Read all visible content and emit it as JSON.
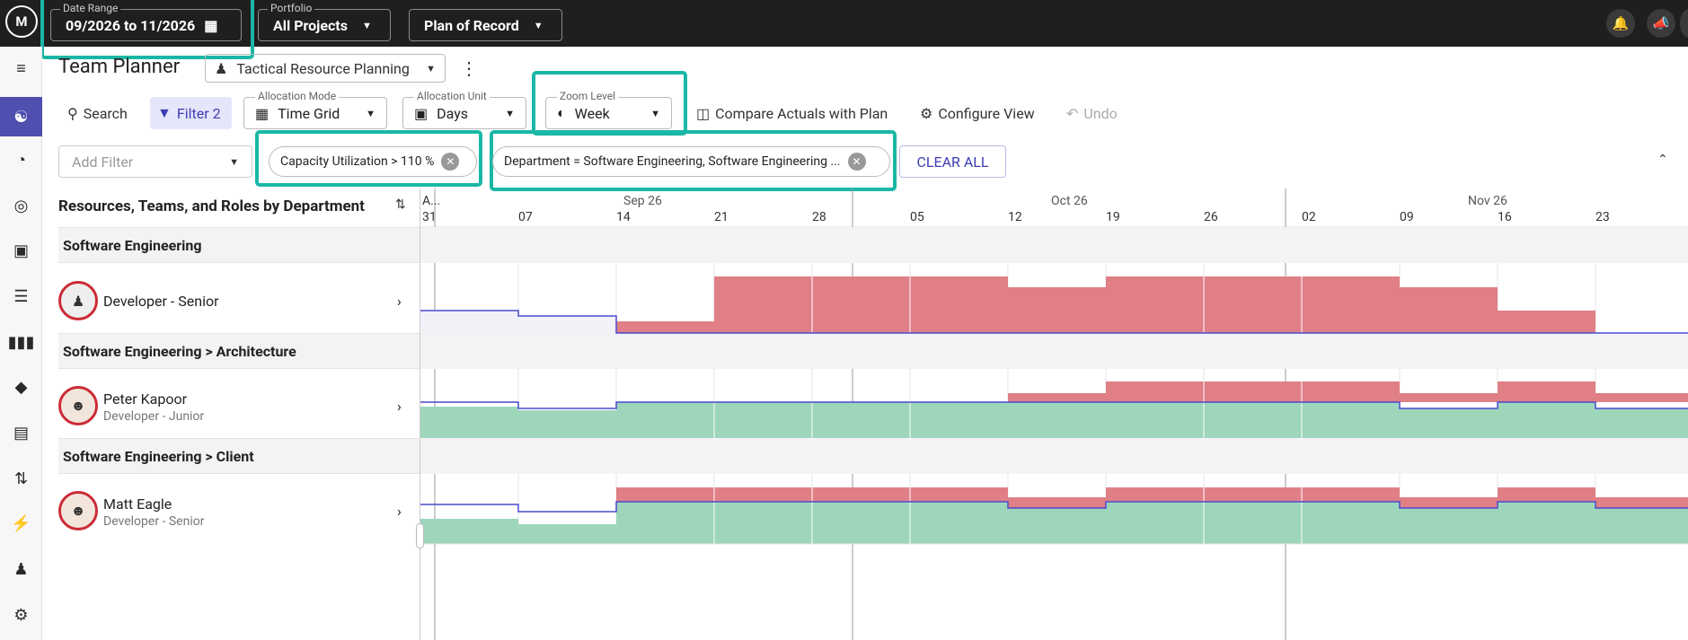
{
  "topbar": {
    "logo": "M",
    "date_range": {
      "label": "Date Range",
      "value": "09/2026 to 11/2026"
    },
    "portfolio": {
      "label": "Portfolio",
      "value": "All Projects"
    },
    "plan": {
      "value": "Plan of Record"
    },
    "icons": [
      "bell-icon",
      "megaphone-icon"
    ]
  },
  "sidebar": {
    "items": [
      "menu-collapse-icon",
      "team-planner-icon",
      "portfolio-icon",
      "target-icon",
      "resource-icon",
      "list-icon",
      "board-icon",
      "roadmap-icon",
      "document-icon",
      "transfer-icon",
      "plug-icon",
      "people-icon",
      "settings-icon"
    ],
    "active_index": 1
  },
  "header": {
    "title": "Team Planner",
    "view": "Tactical Resource Planning"
  },
  "toolbar": {
    "search": "Search",
    "filter": "Filter 2",
    "allocation_mode": {
      "label": "Allocation Mode",
      "value": "Time Grid"
    },
    "allocation_unit": {
      "label": "Allocation Unit",
      "value": "Days"
    },
    "zoom_level": {
      "label": "Zoom Level",
      "value": "Week"
    },
    "compare": "Compare Actuals with Plan",
    "configure": "Configure View",
    "undo": "Undo"
  },
  "filters": {
    "add_placeholder": "Add Filter",
    "chips": [
      "Capacity Utilization > 110 %",
      "Department = Software Engineering, Software Engineering ..."
    ],
    "clear_all": "CLEAR ALL"
  },
  "grid": {
    "column_header": "Resources, Teams, and Roles by Department",
    "first_col": {
      "month": "A...",
      "day": "31"
    },
    "months": [
      "Sep 26",
      "Oct 26",
      "Nov 26"
    ],
    "weeks": [
      "07",
      "14",
      "21",
      "28",
      "05",
      "12",
      "19",
      "26",
      "02",
      "09",
      "16",
      "23"
    ],
    "groups": [
      "Software Engineering",
      "Software Engineering > Architecture",
      "Software Engineering > Client"
    ],
    "rows": [
      {
        "name": "Developer - Senior",
        "role": ""
      },
      {
        "name": "Peter Kapoor",
        "role": "Developer - Junior"
      },
      {
        "name": "Matt Eagle",
        "role": "Developer - Senior"
      }
    ]
  },
  "colors": {
    "over": "#e07f86",
    "under": "#9ed6bb",
    "capacity_line": "#4a4ad0",
    "accent": "#4f4fb0",
    "highlight": "#1ab7a6"
  }
}
